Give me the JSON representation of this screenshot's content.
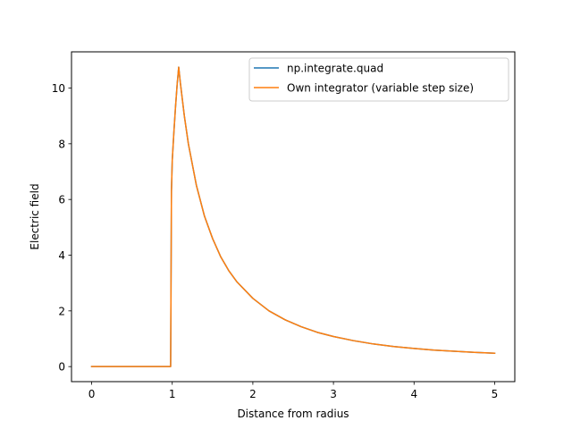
{
  "chart_data": {
    "type": "line",
    "title": "",
    "xlabel": "Distance from radius",
    "ylabel": "Electric field",
    "xlim": [
      -0.25,
      5.25
    ],
    "ylim": [
      -0.54,
      11.3
    ],
    "xticks": [
      0,
      1,
      2,
      3,
      4,
      5
    ],
    "xtick_labels": [
      "0",
      "1",
      "2",
      "3",
      "4",
      "5"
    ],
    "yticks": [
      0,
      2,
      4,
      6,
      8,
      10
    ],
    "ytick_labels": [
      "0",
      "2",
      "4",
      "6",
      "8",
      "10"
    ],
    "grid": false,
    "legend_position": "top-right",
    "series": [
      {
        "name": "np.integrate.quad",
        "color": "#1f77b4",
        "x": [
          0,
          0.5,
          0.98,
          0.99,
          1.0,
          1.02,
          1.04,
          1.06,
          1.08,
          1.1,
          1.15,
          1.2,
          1.3,
          1.4,
          1.5,
          1.6,
          1.7,
          1.8,
          2.0,
          2.2,
          2.4,
          2.6,
          2.8,
          3.0,
          3.25,
          3.5,
          3.75,
          4.0,
          4.25,
          4.5,
          4.75,
          5.0
        ],
        "y": [
          0,
          0,
          0,
          6.3,
          7.4,
          8.4,
          9.3,
          10.1,
          10.75,
          10.2,
          9.0,
          8.0,
          6.5,
          5.4,
          4.6,
          3.95,
          3.45,
          3.05,
          2.45,
          2.0,
          1.68,
          1.43,
          1.23,
          1.08,
          0.93,
          0.81,
          0.72,
          0.65,
          0.59,
          0.55,
          0.51,
          0.48
        ]
      },
      {
        "name": "Own integrator (variable step size)",
        "color": "#ff7f0e",
        "x": [
          0,
          0.5,
          0.98,
          0.99,
          1.0,
          1.02,
          1.04,
          1.06,
          1.08,
          1.1,
          1.15,
          1.2,
          1.3,
          1.4,
          1.5,
          1.6,
          1.7,
          1.8,
          2.0,
          2.2,
          2.4,
          2.6,
          2.8,
          3.0,
          3.25,
          3.5,
          3.75,
          4.0,
          4.25,
          4.5,
          4.75,
          5.0
        ],
        "y": [
          0,
          0,
          0,
          6.3,
          7.4,
          8.4,
          9.3,
          10.1,
          10.75,
          10.2,
          9.0,
          8.0,
          6.5,
          5.4,
          4.6,
          3.95,
          3.45,
          3.05,
          2.45,
          2.0,
          1.68,
          1.43,
          1.23,
          1.08,
          0.93,
          0.81,
          0.72,
          0.65,
          0.59,
          0.55,
          0.51,
          0.48
        ]
      }
    ]
  }
}
